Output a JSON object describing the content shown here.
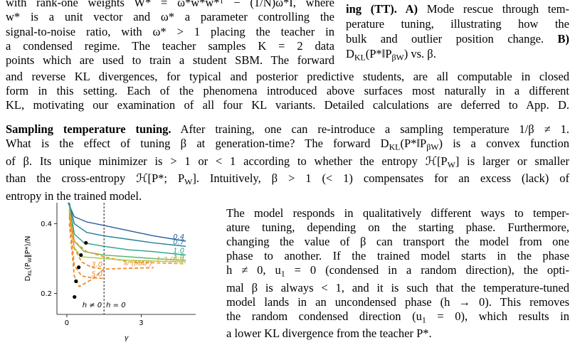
{
  "left_column": {
    "lines": [
      [
        "with rank-one weights W* = ω*w*w*ᵀ − (1/N)ω*I, where"
      ],
      [
        "w* is a unit vector and ω* a parameter controlling the"
      ],
      [
        "signal-to-noise ratio, with ω* > 1 placing the teacher in"
      ],
      [
        "a condensed regime. The teacher samples K = 2 data"
      ],
      [
        "points which are used to train a student SBM. The forward"
      ]
    ]
  },
  "caption": {
    "lines": [
      [
        {
          "text": "ing (TT). A)",
          "bold": true
        },
        " Mode rescue through tem-"
      ],
      [
        "perature tuning, illustrating how the"
      ],
      [
        "bulk and outlier position change. ",
        {
          "text": "B)",
          "bold": true
        }
      ],
      [
        "D",
        {
          "text": "KL",
          "sub": true
        },
        "(P*‖P",
        {
          "text": "βW",
          "sub": true
        },
        ") vs. β."
      ]
    ]
  },
  "body_top": {
    "lines": [
      [
        "and reverse KL divergences, for typical and posterior predictive students, are all computable in closed"
      ],
      [
        "form in this setting. Each of the phenomena introduced above surfaces most naturally in a different"
      ],
      [
        "KL, motivating our examination of all four KL variants. Detailed calculations are deferred to App. D."
      ]
    ]
  },
  "section": {
    "lines": [
      [
        {
          "text": "Sampling temperature tuning.",
          "bold": true
        },
        " After training, one can re-introduce a sampling temperature 1/β ≠ 1."
      ],
      [
        "What is the effect of tuning β at generation-time? The forward D",
        {
          "text": "KL",
          "sub": true
        },
        "(P*‖P",
        {
          "text": "βW",
          "sub": true
        },
        ") is a convex function"
      ],
      [
        "of β. Its unique minimizer is > 1 or < 1 according to whether the entropy ℋ[P",
        {
          "text": "W",
          "sub": true
        },
        "] is larger or smaller"
      ],
      [
        "than the cross-entropy ℋ[P*; P",
        {
          "text": "W",
          "sub": true
        },
        "]. Intuitively, β > 1 (< 1) compensates for an excess (lack) of"
      ],
      [
        "entropy in the trained model."
      ]
    ]
  },
  "right_text": {
    "lines": [
      [
        "The model responds in qualitatively different ways to temper-"
      ],
      [
        "ature tuning, depending on the starting phase. Furthermore,"
      ],
      [
        "changing the value of β can transport the model from one"
      ],
      [
        "phase to another. If the trained model starts in the phase"
      ],
      [
        "h ≠ 0, u",
        {
          "text": "1",
          "sub": true
        },
        " = 0 (condensed in a random direction), the opti-"
      ],
      [
        "mal β is always < 1, and it is such that the temperature-tuned"
      ],
      [
        "model lands in an uncondensed phase (h → 0). This removes"
      ],
      [
        "the random condensed direction (u",
        {
          "text": "1",
          "sub": true
        },
        " = 0), which results in"
      ],
      [
        "a lower KL divergence from the teacher P*."
      ]
    ]
  },
  "chart_data": {
    "type": "line",
    "ylabel": [
      "D",
      {
        "text": "KL",
        "sub": true
      },
      "(P",
      {
        "text": "W",
        "sub": true
      },
      "‖P*)/N"
    ],
    "xlabel": "γ",
    "xlim": [
      -0.4,
      5.2
    ],
    "ylim": [
      0.14,
      0.46
    ],
    "xticks": [
      0,
      3
    ],
    "yticks": [
      0.2,
      0.4
    ],
    "vline": 1.5,
    "annotations": [
      "h ≠ 0",
      "h = 0"
    ],
    "series": [
      {
        "name": "0.4",
        "color": "#2b5c9c",
        "dashed": false,
        "x": [
          0.05,
          0.3,
          0.8,
          1.5,
          2.5,
          3.5,
          4.8
        ],
        "values": [
          0.46,
          0.42,
          0.405,
          0.395,
          0.38,
          0.365,
          0.35
        ]
      },
      {
        "name": "0.7",
        "color": "#24809c",
        "dashed": false,
        "x": [
          0.1,
          0.3,
          0.8,
          1.5,
          2.5,
          3.5,
          4.8
        ],
        "values": [
          0.46,
          0.4,
          0.375,
          0.365,
          0.355,
          0.345,
          0.335
        ]
      },
      {
        "name": "1.0",
        "color": "#27a089",
        "dashed": false,
        "x": [
          0.1,
          0.3,
          0.7,
          1.5,
          2.5,
          3.5,
          4.8
        ],
        "values": [
          0.46,
          0.37,
          0.345,
          0.335,
          0.325,
          0.32,
          0.31
        ]
      },
      {
        "name": "1.5",
        "color": "#5ab868",
        "dashed": false,
        "x": [
          0.1,
          0.3,
          0.7,
          1.5,
          2.5,
          3.5,
          4.8
        ],
        "values": [
          0.45,
          0.35,
          0.32,
          0.31,
          0.305,
          0.3,
          0.295
        ]
      },
      {
        "name": "2.0",
        "color": "#a0cc48",
        "dashed": false,
        "x": [
          0.1,
          0.3,
          0.6,
          1.5,
          2.5,
          3.5,
          4.8
        ],
        "values": [
          0.44,
          0.33,
          0.305,
          0.3,
          0.295,
          0.293,
          0.29
        ]
      },
      {
        "name": "1.3 (uₘ)",
        "color": "#f0a030",
        "dashed": true,
        "x": [
          0.1,
          0.3,
          0.8,
          1.5,
          2.5,
          3.5,
          4.8
        ],
        "values": [
          0.44,
          0.35,
          0.32,
          0.305,
          0.29,
          0.288,
          0.285
        ]
      },
      {
        "name": "3.0",
        "color": "#f08a2a",
        "dashed": true,
        "x": [
          0.1,
          0.3,
          0.6,
          1.0,
          1.5
        ],
        "values": [
          0.43,
          0.33,
          0.29,
          0.275,
          0.27
        ]
      },
      {
        "name": "5.0",
        "color": "#f08a2a",
        "dashed": true,
        "x": [
          0.1,
          0.3,
          0.6,
          1.0,
          1.5
        ],
        "values": [
          0.42,
          0.28,
          0.25,
          0.245,
          0.243
        ]
      },
      {
        "name": "∞ (MAP)",
        "color": "#f08a2a",
        "dashed": true,
        "x": [
          0.1,
          0.3,
          0.5,
          1.0,
          1.5,
          2.5,
          3.5
        ],
        "values": [
          0.4,
          0.25,
          0.22,
          0.24,
          0.27,
          0.272,
          0.274
        ]
      }
    ],
    "points": {
      "x": [
        0.77,
        0.57,
        0.48,
        0.37,
        0.31
      ],
      "y": [
        0.345,
        0.31,
        0.275,
        0.235,
        0.19
      ]
    }
  }
}
